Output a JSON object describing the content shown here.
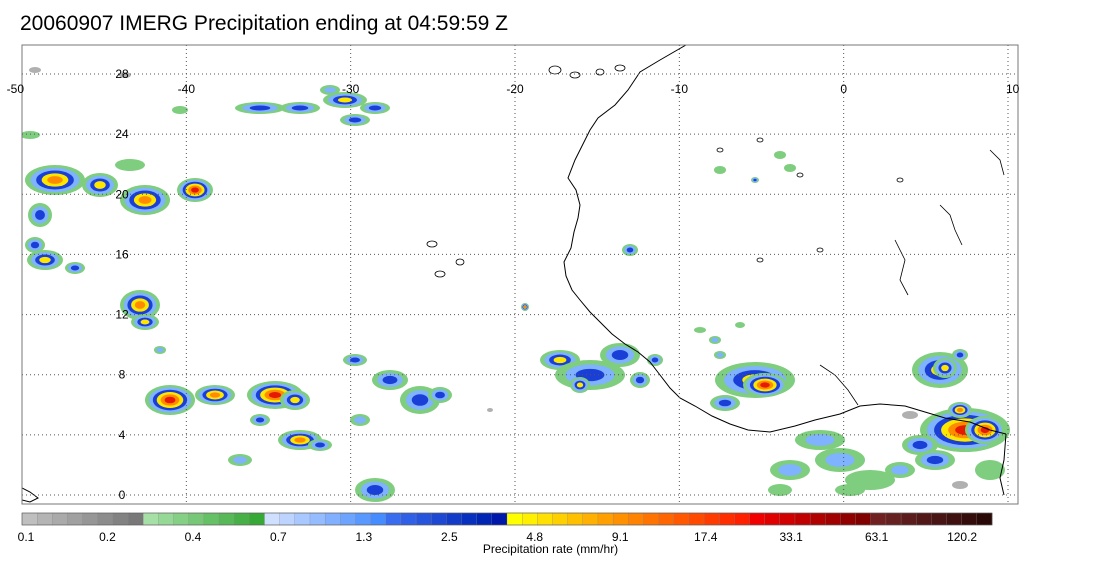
{
  "title": "20060907 IMERG Precipitation ending at 04:59:59 Z",
  "map": {
    "lon_ticks": [
      "-50",
      "-40",
      "-30",
      "-20",
      "-10",
      "0",
      "10"
    ],
    "lat_ticks": [
      "28",
      "24",
      "20",
      "16",
      "12",
      "8",
      "4",
      "0"
    ],
    "lon_range": [
      -50,
      10
    ],
    "lat_range": [
      -0.5,
      30
    ],
    "grid": "dotted"
  },
  "colorbar": {
    "title": "Precipitation rate (mm/hr)",
    "labels": [
      "0.1",
      "0.2",
      "0.4",
      "0.7",
      "1.3",
      "2.5",
      "4.8",
      "9.1",
      "17.4",
      "33.1",
      "63.1",
      "120.2"
    ],
    "colors": [
      "#bfbfbf",
      "#b4b4b4",
      "#aaaaaa",
      "#a0a0a0",
      "#969696",
      "#8c8c8c",
      "#828282",
      "#787878",
      "#a6e0a6",
      "#96d896",
      "#86d086",
      "#76c876",
      "#66c066",
      "#56b856",
      "#46b046",
      "#36a836",
      "#cfe0ff",
      "#bcd4ff",
      "#a8c8ff",
      "#94bcff",
      "#80b0ff",
      "#6ca4ff",
      "#5898ff",
      "#448cff",
      "#3a6cf0",
      "#3060e6",
      "#2654dc",
      "#1c48d2",
      "#123cc8",
      "#0830be",
      "#0024b4",
      "#0018aa",
      "#ffff00",
      "#fff000",
      "#ffe000",
      "#ffd000",
      "#ffc000",
      "#ffb000",
      "#ffa000",
      "#ff9000",
      "#ff8200",
      "#ff7400",
      "#ff6600",
      "#ff5800",
      "#ff4a00",
      "#ff3c00",
      "#ff2e00",
      "#ff2000",
      "#f00000",
      "#e00000",
      "#d00000",
      "#c00000",
      "#b00000",
      "#a00000",
      "#900000",
      "#800000",
      "#702020",
      "#662020",
      "#5c1c1c",
      "#521818",
      "#481414",
      "#3e1010",
      "#340c0c",
      "#2a0808"
    ]
  },
  "legend_colors": {
    "gray": "#b0b0b0",
    "green": "#7fcd7f",
    "lightblue": "#7fb2ff",
    "blue": "#1a3fd6",
    "yellow": "#ffe600",
    "orange": "#ff8c00",
    "red": "#e61a00",
    "darkred": "#800000",
    "coast": "#000000"
  }
}
